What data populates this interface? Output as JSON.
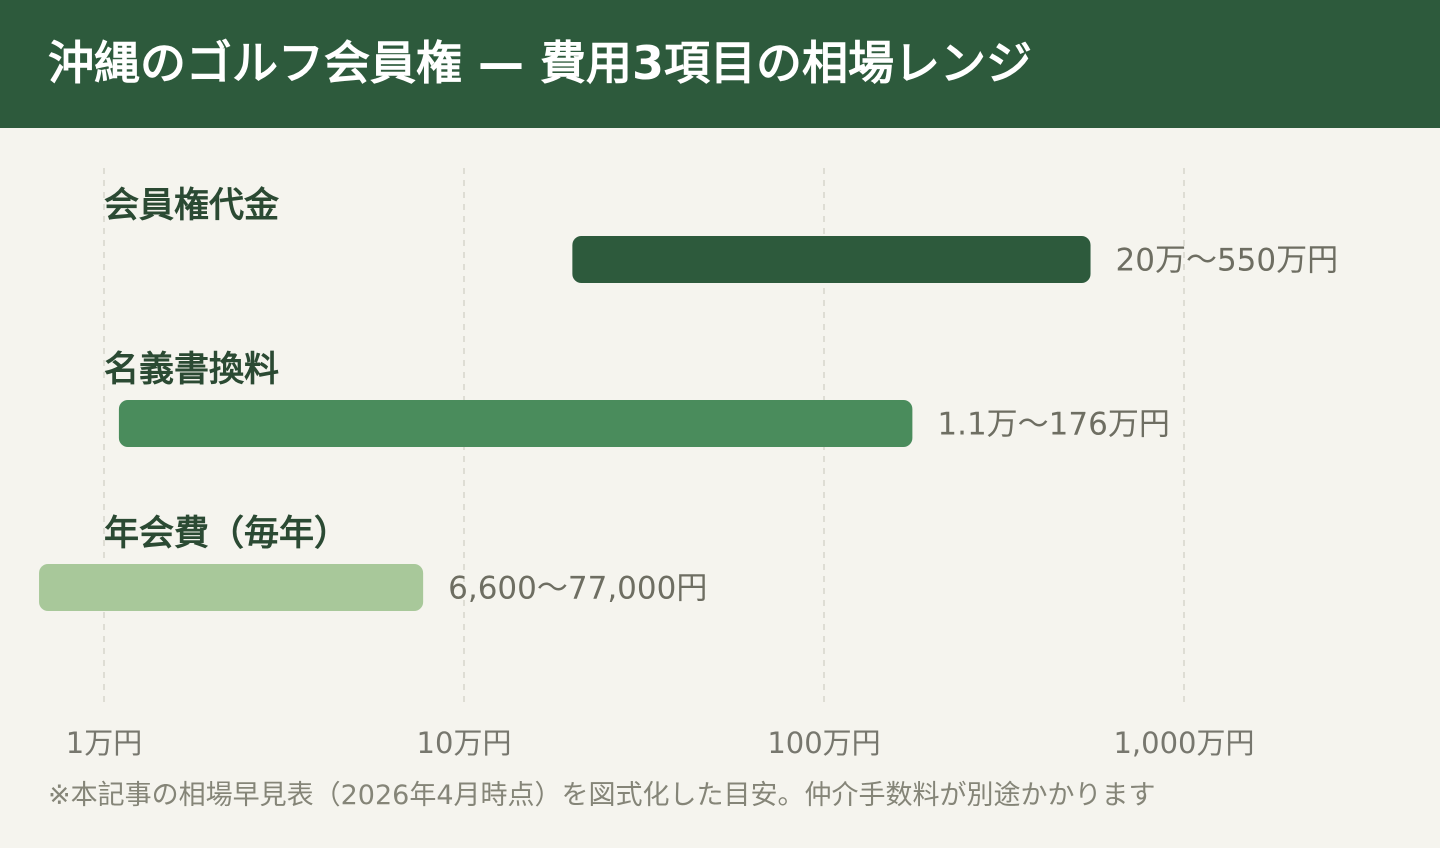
{
  "theme": {
    "background": "#f5f4ee",
    "header": "#2d5a3c"
  },
  "chart_data": {
    "type": "bar",
    "orientation": "horizontal",
    "bar_style": "range",
    "title": "沖縄のゴルフ会員権 — 費用3項目の相場レンジ",
    "x_scale": "log",
    "xlim": [
      0.6,
      1000
    ],
    "x_ticks": [
      1,
      10,
      100,
      1000
    ],
    "x_tick_labels": [
      "1万円",
      "10万円",
      "100万円",
      "1,000万円"
    ],
    "grid": true,
    "legend": "none",
    "categories": [
      "会員権代金",
      "名義書換料",
      "年会費（毎年）"
    ],
    "ranges": [
      [
        20,
        550
      ],
      [
        1.1,
        176
      ],
      [
        0.66,
        7.7
      ]
    ],
    "range_labels": [
      "20万〜550万円",
      "1.1万〜176万円",
      "6,600〜77,000円"
    ],
    "colors": [
      "#2d5a3c",
      "#4a8c5c",
      "#a8c89a"
    ],
    "footnote": "※本記事の相場早見表（2026年4月時点）を図式化した目安。仲介手数料が別途かかります"
  }
}
